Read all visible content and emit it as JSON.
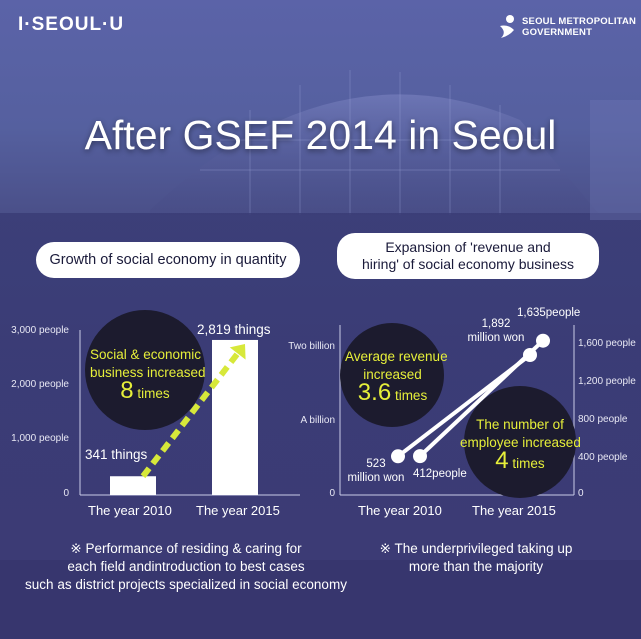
{
  "header": {
    "brand": "I·SEOUL·U",
    "gov_line1": "SEOUL METROPOLITAN",
    "gov_line2": "GOVERNMENT"
  },
  "title": "After GSEF 2014 in Seoul",
  "chart_data": [
    {
      "type": "bar",
      "title": "Growth of social economy in quantity",
      "categories": [
        "The year 2010",
        "The year 2015"
      ],
      "values": [
        341,
        2819
      ],
      "value_labels": [
        "341 things",
        "2,819 things"
      ],
      "unit": "things",
      "yticks": [
        "0",
        "1,000 people",
        "2,000 people",
        "3,000 people"
      ],
      "ylim": [
        0,
        3000
      ],
      "annotation": {
        "line1": "Social & economic",
        "line2": "business increased",
        "highlight": "8",
        "suffix": "times"
      }
    },
    {
      "type": "line",
      "title_line1": "Expansion of 'revenue and",
      "title_line2": "hiring' of social economy business",
      "categories": [
        "The year 2010",
        "The year 2015"
      ],
      "series": [
        {
          "values": [
            523,
            1892
          ],
          "unit": "million won",
          "labels": [
            {
              "top": "523",
              "bottom": "million won"
            },
            {
              "top": "1,892",
              "bottom": "million won"
            }
          ],
          "yticks_left": [
            "0",
            "A billion",
            "Two billion"
          ],
          "ylim": [
            0,
            2000
          ]
        },
        {
          "values": [
            412,
            1635
          ],
          "unit": "people",
          "labels": [
            "412people",
            "1,635people"
          ],
          "yticks_right": [
            "0",
            "400 people",
            "800 people",
            "1,200 people",
            "1,600 people"
          ],
          "ylim": [
            0,
            1800
          ]
        }
      ],
      "annotations": [
        {
          "line1": "Average revenue",
          "line2": "increased",
          "highlight": "3.6",
          "suffix": "times"
        },
        {
          "line1": "The number of",
          "line2": "employee increased",
          "highlight": "4",
          "suffix": "times"
        }
      ]
    }
  ],
  "footnotes": {
    "left": [
      "※ Performance of residing & caring for",
      "each field andintroduction to best cases",
      "such as district projects specialized in social economy"
    ],
    "right": [
      "※ The underprivileged taking up",
      "more than the majority"
    ]
  },
  "colors": {
    "accent_yellow": "#e6ef3a",
    "bubble": "#1c1b2e",
    "panel": "#3d3f78"
  }
}
